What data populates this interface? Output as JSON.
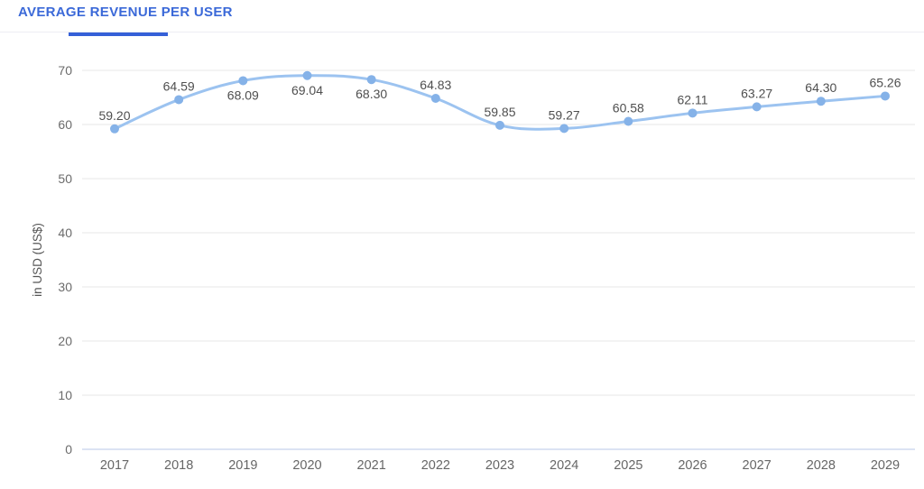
{
  "header": {
    "tab_label": "AVERAGE REVENUE PER USER",
    "accent_color": "#3B69D8"
  },
  "chart_data": {
    "type": "line",
    "title": "AVERAGE REVENUE PER USER",
    "categories": [
      "2017",
      "2018",
      "2019",
      "2020",
      "2021",
      "2022",
      "2023",
      "2024",
      "2025",
      "2026",
      "2027",
      "2028",
      "2029"
    ],
    "values": [
      59.2,
      64.59,
      68.09,
      69.04,
      68.3,
      64.83,
      59.85,
      59.27,
      60.58,
      62.11,
      63.27,
      64.3,
      65.26
    ],
    "value_labels": [
      "59.20",
      "64.59",
      "68.09",
      "69.04",
      "68.30",
      "64.83",
      "59.85",
      "59.27",
      "60.58",
      "62.11",
      "63.27",
      "64.30",
      "65.26"
    ],
    "label_positions": [
      "above",
      "above",
      "below",
      "below",
      "below",
      "above",
      "above",
      "above",
      "above",
      "above",
      "above",
      "above",
      "above"
    ],
    "xlabel": "",
    "ylabel": "in USD (US$)",
    "ylim": [
      0,
      70
    ],
    "ytick_step": 10,
    "grid": true,
    "legend": "none",
    "colors": {
      "line": "#9CC3F0",
      "point": "#85B2E8",
      "grid": "#E7E7E7",
      "zero_line": "#DCE3F3",
      "ytick_text": "#6B6B6B",
      "xtick_text": "#666666",
      "data_label_text": "#4F4F4F"
    }
  }
}
